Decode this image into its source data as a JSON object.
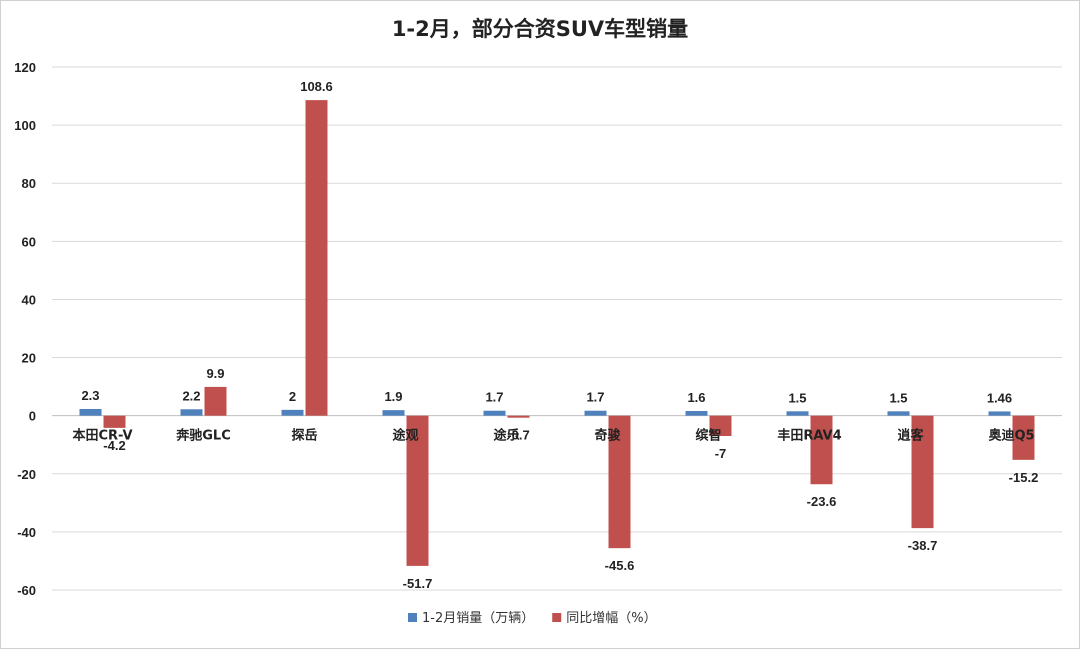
{
  "chart_data": {
    "type": "bar",
    "title": "1-2月，部分合资SUV车型销量",
    "categories": [
      "本田CR-V",
      "奔驰GLC",
      "探岳",
      "途观",
      "途乐",
      "奇骏",
      "缤智",
      "丰田RAV4",
      "逍客",
      "奥迪Q5"
    ],
    "series": [
      {
        "name": "1-2月销量（万辆）",
        "color": "#4f81bd",
        "values": [
          2.3,
          2.2,
          2,
          1.9,
          1.7,
          1.7,
          1.6,
          1.5,
          1.5,
          1.46
        ],
        "labels": [
          "2.3",
          "2.2",
          "2",
          "1.9",
          "1.7",
          "1.7",
          "1.6",
          "1.5",
          "1.5",
          "1.46"
        ]
      },
      {
        "name": "同比增幅（%）",
        "color": "#c0504d",
        "values": [
          -4.2,
          9.9,
          108.6,
          -51.7,
          -0.7,
          -45.6,
          -7,
          -23.6,
          -38.7,
          -15.2
        ],
        "labels": [
          "-4.2",
          "9.9",
          "108.6",
          "-51.7",
          "-0.7",
          "-45.6",
          "-7",
          "-23.6",
          "-38.7",
          "-15.2"
        ]
      }
    ],
    "ylim": [
      -60,
      120
    ],
    "yticks": [
      120,
      100,
      80,
      60,
      40,
      20,
      0,
      -20,
      -40,
      -60
    ],
    "grid": true,
    "legend": "bottom"
  }
}
